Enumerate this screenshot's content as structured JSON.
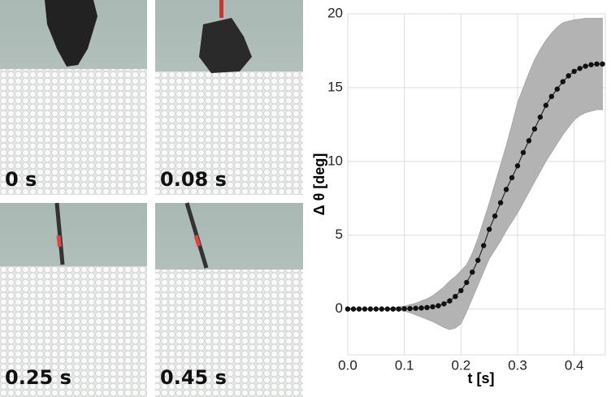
{
  "photos": [
    {
      "label": "0 s"
    },
    {
      "label": "0.08 s"
    },
    {
      "label": "0.25 s"
    },
    {
      "label": "0.45 s"
    }
  ],
  "chart_data": {
    "type": "line",
    "xlabel": "t [s]",
    "ylabel": "Δ θ [deg]",
    "xlim": [
      0,
      0.455
    ],
    "ylim": [
      -3.1,
      20
    ],
    "xticks": [
      {
        "value": 0,
        "label": "0.0"
      },
      0.1,
      0.2,
      0.3,
      0.4
    ],
    "yticks": [
      0,
      5,
      10,
      15,
      20
    ],
    "grid": true,
    "color": "#111111",
    "band_color": "#b3b3b3",
    "x": [
      0,
      0.01,
      0.02,
      0.03,
      0.04,
      0.05,
      0.06,
      0.07,
      0.08,
      0.09,
      0.1,
      0.11,
      0.12,
      0.13,
      0.14,
      0.15,
      0.16,
      0.17,
      0.18,
      0.19,
      0.2,
      0.21,
      0.22,
      0.23,
      0.24,
      0.25,
      0.26,
      0.27,
      0.28,
      0.29,
      0.3,
      0.31,
      0.32,
      0.33,
      0.34,
      0.35,
      0.36,
      0.37,
      0.38,
      0.39,
      0.4,
      0.41,
      0.42,
      0.43,
      0.44,
      0.45
    ],
    "values": [
      0,
      0,
      0,
      0,
      0,
      0,
      0,
      0,
      0,
      0,
      0.02,
      0.03,
      0.05,
      0.07,
      0.1,
      0.15,
      0.22,
      0.35,
      0.55,
      0.85,
      1.25,
      1.8,
      2.5,
      3.3,
      4.3,
      5.4,
      6.3,
      7.2,
      8.1,
      8.9,
      9.7,
      10.6,
      11.4,
      12.2,
      13.0,
      13.8,
      14.4,
      14.9,
      15.4,
      15.8,
      16.1,
      16.3,
      16.45,
      16.55,
      16.6,
      16.6
    ],
    "upper": [
      0,
      0,
      0,
      0,
      0,
      0,
      0.02,
      0.05,
      0.1,
      0.15,
      0.2,
      0.3,
      0.4,
      0.55,
      0.7,
      0.9,
      1.2,
      1.5,
      1.9,
      2.2,
      2.6,
      3.0,
      3.8,
      4.8,
      6.0,
      7.2,
      8.5,
      9.8,
      11.1,
      12.5,
      14.0,
      15.0,
      16.0,
      16.9,
      17.6,
      18.2,
      18.7,
      19.1,
      19.4,
      19.5,
      19.6,
      19.65,
      19.7,
      19.7,
      19.7,
      19.7
    ],
    "lower": [
      0,
      0,
      0,
      0,
      0,
      0,
      -0.02,
      -0.05,
      -0.08,
      -0.1,
      -0.15,
      -0.25,
      -0.4,
      -0.55,
      -0.7,
      -0.85,
      -1.05,
      -1.25,
      -1.4,
      -1.3,
      -1.0,
      -0.2,
      0.7,
      1.6,
      2.5,
      3.4,
      4.0,
      4.6,
      5.3,
      5.9,
      6.5,
      7.2,
      7.9,
      8.6,
      9.3,
      10.0,
      10.6,
      11.2,
      11.8,
      12.3,
      12.8,
      13.1,
      13.3,
      13.4,
      13.5,
      13.5
    ]
  }
}
